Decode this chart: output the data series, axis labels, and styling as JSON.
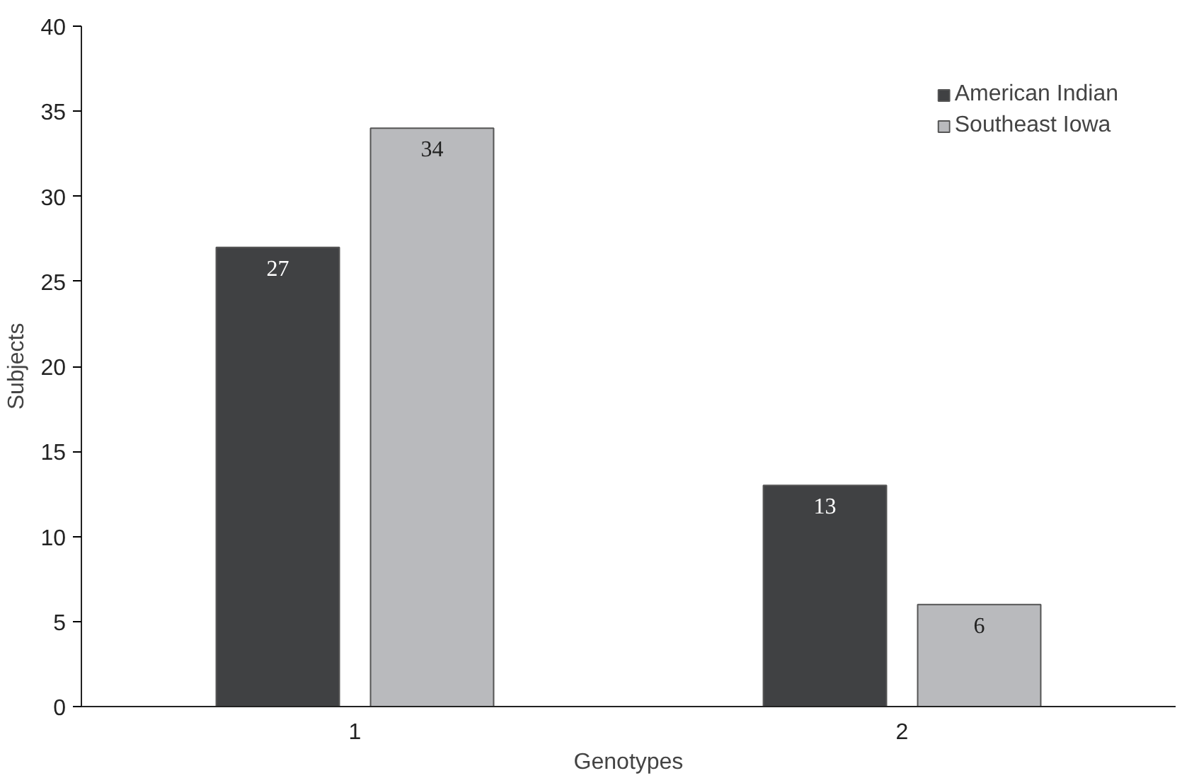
{
  "chart_data": {
    "type": "bar",
    "xlabel": "Genotypes",
    "ylabel": "Subjects",
    "categories": [
      "1",
      "2"
    ],
    "series": [
      {
        "name": "American Indian",
        "color": "#404143",
        "values": [
          27,
          13
        ]
      },
      {
        "name": "Southeast Iowa",
        "color": "#b9babd",
        "values": [
          34,
          6
        ]
      }
    ],
    "ylim": [
      0,
      40
    ],
    "yticks": [
      0,
      5,
      10,
      15,
      20,
      25,
      30,
      35,
      40
    ],
    "grid": false,
    "legend": "top right",
    "data_labels": true
  }
}
